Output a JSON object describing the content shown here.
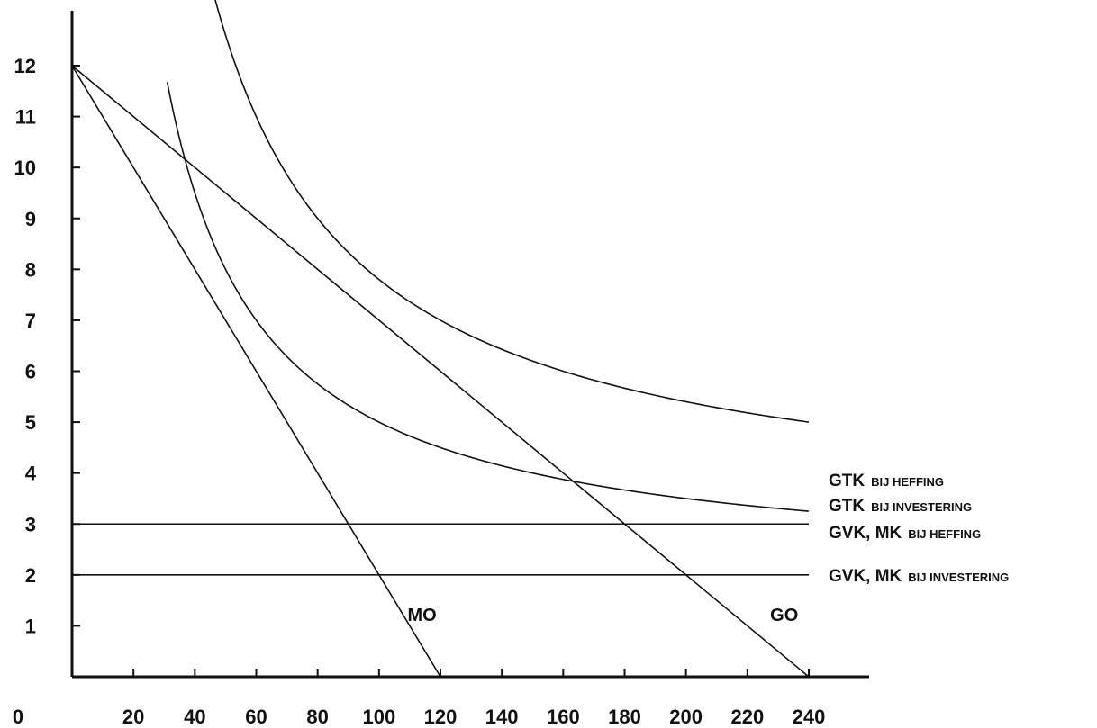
{
  "chart_data": {
    "type": "line",
    "title": "",
    "xlabel": "",
    "ylabel": "",
    "xlim": [
      0,
      250
    ],
    "ylim": [
      0,
      12.5
    ],
    "origin_label": "0",
    "x_ticks": [
      20,
      40,
      60,
      80,
      100,
      120,
      140,
      160,
      180,
      200,
      220,
      240
    ],
    "y_ticks": [
      1,
      2,
      3,
      4,
      5,
      6,
      7,
      8,
      9,
      10,
      11,
      12
    ],
    "grid": false,
    "legend": "right-end labels",
    "series": [
      {
        "name": "GO",
        "kind": "line",
        "points": [
          [
            0,
            12
          ],
          [
            240,
            0
          ]
        ],
        "label_at": [
          232,
          1.1
        ]
      },
      {
        "name": "MO",
        "kind": "line",
        "points": [
          [
            0,
            12
          ],
          [
            120,
            0
          ]
        ],
        "label_at": [
          114,
          1.1
        ]
      },
      {
        "name": "GTK",
        "name_suffix": "BIJ HEFFING",
        "kind": "curve",
        "fixed": 480,
        "variable": 3,
        "x_range": [
          22,
          240
        ]
      },
      {
        "name": "GTK",
        "name_suffix": "BIJ INVESTERING",
        "kind": "curve",
        "fixed": 300,
        "variable": 2,
        "x_range": [
          31,
          240
        ]
      },
      {
        "name": "GVK, MK",
        "name_suffix": "BIJ HEFFING",
        "kind": "hline",
        "y": 3,
        "x_range": [
          0,
          240
        ]
      },
      {
        "name": "GVK, MK",
        "name_suffix": "BIJ INVESTERING",
        "kind": "hline",
        "y": 2,
        "x_range": [
          0,
          240
        ]
      }
    ]
  }
}
